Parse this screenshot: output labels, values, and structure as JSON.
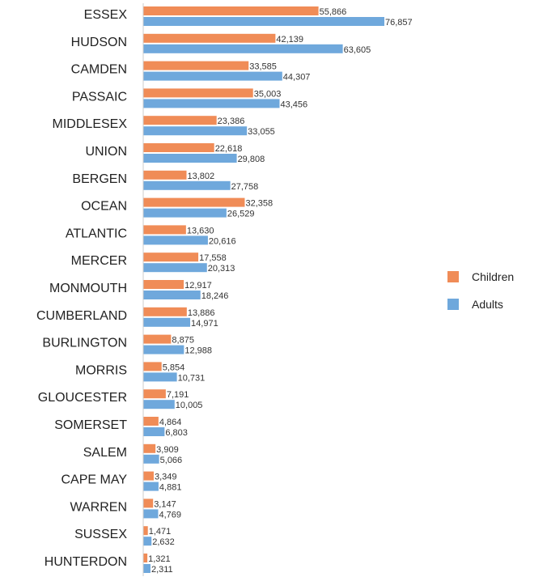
{
  "chart_data": {
    "type": "bar",
    "orientation": "horizontal",
    "categories": [
      "ESSEX",
      "HUDSON",
      "CAMDEN",
      "PASSAIC",
      "MIDDLESEX",
      "UNION",
      "BERGEN",
      "OCEAN",
      "ATLANTIC",
      "MERCER",
      "MONMOUTH",
      "CUMBERLAND",
      "BURLINGTON",
      "MORRIS",
      "GLOUCESTER",
      "SOMERSET",
      "SALEM",
      "CAPE MAY",
      "WARREN",
      "SUSSEX",
      "HUNTERDON"
    ],
    "series": [
      {
        "name": "Children",
        "color": "#F08C57",
        "values": [
          55866,
          42139,
          33585,
          35003,
          23386,
          22618,
          13802,
          32358,
          13630,
          17558,
          12917,
          13886,
          8875,
          5854,
          7191,
          4864,
          3909,
          3349,
          3147,
          1471,
          1321
        ],
        "labels": [
          "55,866",
          "42,139",
          "33,585",
          "35,003",
          "23,386",
          "22,618",
          "13,802",
          "32,358",
          "13,630",
          "17,558",
          "12,917",
          "13,886",
          "8,875",
          "5,854",
          "7,191",
          "4,864",
          "3,909",
          "3,349",
          "3,147",
          "1,471",
          "1,321"
        ]
      },
      {
        "name": "Adults",
        "color": "#6FA8DC",
        "values": [
          76857,
          63605,
          44307,
          43456,
          33055,
          29808,
          27758,
          26529,
          20616,
          20313,
          18246,
          14971,
          12988,
          10731,
          10005,
          6803,
          5066,
          4881,
          4769,
          2632,
          2311
        ],
        "labels": [
          "76,857",
          "63,605",
          "44,307",
          "43,456",
          "33,055",
          "29,808",
          "27,758",
          "26,529",
          "20,616",
          "20,313",
          "18,246",
          "14,971",
          "12,988",
          "10,731",
          "10,005",
          "6,803",
          "5,066",
          "4,881",
          "4,769",
          "2,632",
          "2,311"
        ]
      }
    ],
    "xlim": [
      0,
      85000
    ],
    "grid": false,
    "legend_position": "right",
    "axis_color": "#CCCCCC"
  }
}
